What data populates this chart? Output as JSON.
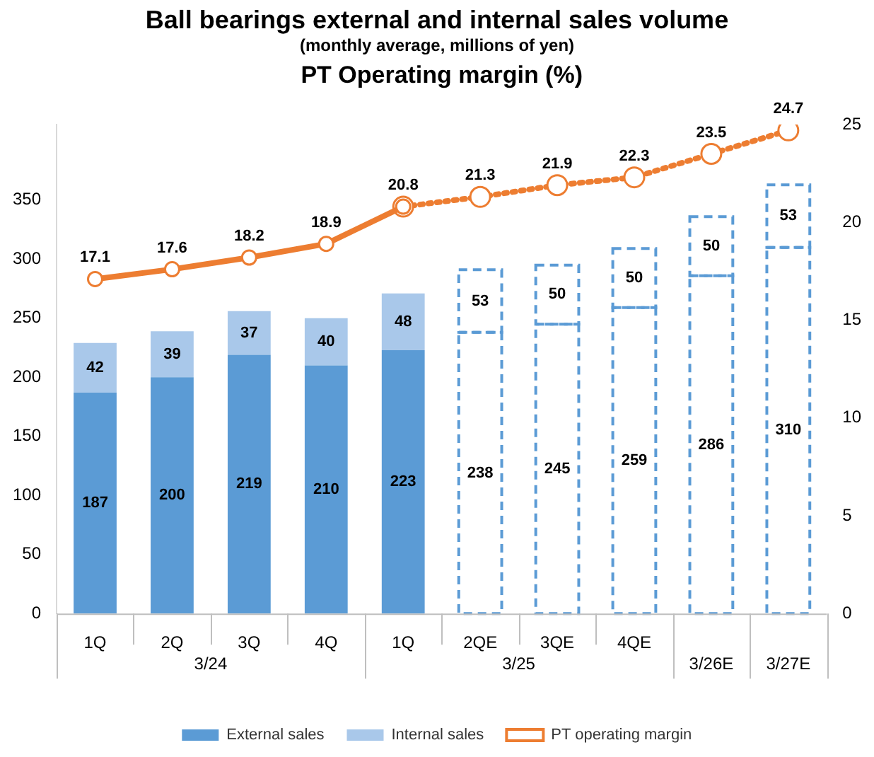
{
  "chart_data": {
    "type": "bar",
    "title": "Ball bearings external and internal sales volume",
    "subtitle": "(monthly average, millions of yen)",
    "y2label": "PT Operating margin (%)",
    "categories": [
      "1Q",
      "2Q",
      "3Q",
      "4Q",
      "1Q",
      "2QE",
      "3QE",
      "4QE",
      null,
      null
    ],
    "annotations": [
      "3/24",
      "3/25",
      "3/26E",
      "3/27E"
    ],
    "stacked": true,
    "grid": false,
    "legend": "bottom",
    "marker": "circle",
    "ylim": [
      0,
      414
    ],
    "yticks": [
      0,
      50,
      100,
      150,
      200,
      250,
      300,
      350
    ],
    "y2lim": [
      0,
      25
    ],
    "y2ticks": [
      0,
      5,
      10,
      15,
      20,
      25
    ],
    "series": [
      {
        "name": "External sales",
        "color": "#5b9bd5",
        "colors": [
          "#5b9bd5",
          "#5b9bd5",
          "#5b9bd5",
          "#5b9bd5",
          "#5b9bd5",
          "#ffffff",
          "#ffffff",
          "#ffffff",
          "#ffffff",
          "#ffffff"
        ],
        "values": [
          187,
          200,
          219,
          210,
          223,
          238,
          245,
          259,
          286,
          310
        ],
        "value_labels": [
          "187",
          "200",
          "219",
          "210",
          "223",
          "238",
          "245",
          "259",
          "286",
          "310"
        ]
      },
      {
        "name": "Internal sales",
        "color": "#a9c8ea",
        "colors": [
          "#a9c8ea",
          "#a9c8ea",
          "#a9c8ea",
          "#a9c8ea",
          "#a9c8ea",
          "#ffffff",
          "#ffffff",
          "#ffffff",
          "#ffffff",
          "#ffffff"
        ],
        "values": [
          42,
          39,
          37,
          40,
          48,
          53,
          50,
          50,
          50,
          53
        ],
        "value_labels": [
          "42",
          "39",
          "37",
          "40",
          "48",
          "53",
          "50",
          "50",
          "50",
          "53"
        ]
      },
      {
        "name": "PT operating margin",
        "type": "line",
        "axis": "y2",
        "color": "#ed7d31",
        "line_style": "solid",
        "values": [
          17.1,
          17.6,
          18.2,
          18.9,
          20.8,
          null,
          null,
          null,
          null,
          null
        ],
        "value_labels": [
          "17.1",
          "17.6",
          "18.2",
          "18.9",
          "20.8",
          null,
          null,
          null,
          null,
          null
        ]
      },
      {
        "type": "line",
        "axis": "y2",
        "color": "#ed7d31",
        "line_style": "dotted",
        "values": [
          null,
          null,
          null,
          null,
          20.8,
          21.3,
          21.9,
          22.3,
          23.5,
          24.7
        ],
        "value_labels": [
          null,
          null,
          null,
          null,
          null,
          "21.3",
          "21.9",
          "22.3",
          "23.5",
          "24.7"
        ]
      }
    ]
  }
}
